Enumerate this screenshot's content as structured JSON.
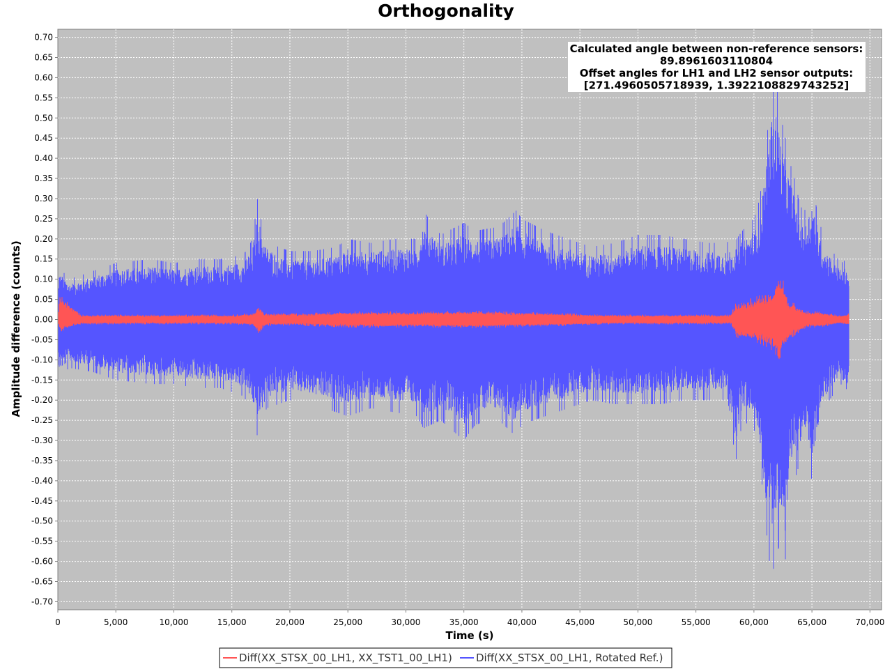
{
  "chart_data": {
    "type": "line",
    "title": "Orthogonality",
    "xlabel": "Time (s)",
    "ylabel": "Amplitude difference (counts)",
    "xlim": [
      0,
      71000
    ],
    "ylim": [
      -0.72,
      0.72
    ],
    "x_ticks": [
      0,
      5000,
      10000,
      15000,
      20000,
      25000,
      30000,
      35000,
      40000,
      45000,
      50000,
      55000,
      60000,
      65000,
      70000
    ],
    "x_tick_labels": [
      "0",
      "5,000",
      "10,000",
      "15,000",
      "20,000",
      "25,000",
      "30,000",
      "35,000",
      "40,000",
      "45,000",
      "50,000",
      "55,000",
      "60,000",
      "65,000",
      "70,000"
    ],
    "y_ticks": [
      0.7,
      0.65,
      0.6,
      0.55,
      0.5,
      0.45,
      0.4,
      0.35,
      0.3,
      0.25,
      0.2,
      0.15,
      0.1,
      0.05,
      0.0,
      -0.05,
      -0.1,
      -0.15,
      -0.2,
      -0.25,
      -0.3,
      -0.35,
      -0.4,
      -0.45,
      -0.5,
      -0.55,
      -0.6,
      -0.65,
      -0.7
    ],
    "y_tick_labels": [
      "0.70",
      "0.65",
      "0.60",
      "0.55",
      "0.50",
      "0.45",
      "0.40",
      "0.35",
      "0.30",
      "0.25",
      "0.20",
      "0.15",
      "0.10",
      "0.05",
      "0.00",
      "-0.05",
      "-0.10",
      "-0.15",
      "-0.20",
      "-0.25",
      "-0.30",
      "-0.35",
      "-0.40",
      "-0.45",
      "-0.50",
      "-0.55",
      "-0.60",
      "-0.65",
      "-0.70"
    ],
    "grid": true,
    "plot_background": "#c0c0c0",
    "annotation_lines": [
      "Calculated angle between non-reference sensors:",
      "89.8961603110804",
      "Offset angles for LH1 and LH2 sensor outputs:",
      "[271.4960505718939, 1.3922108829743252]"
    ],
    "legend_position": "bottom-center",
    "series": [
      {
        "name": "Diff(XX_STSX_00_LH1, Rotated Ref.)",
        "color": "#5555ff",
        "envelope_time_s": [
          0,
          100,
          1000,
          3000,
          5000,
          8000,
          10000,
          12000,
          14000,
          16000,
          16800,
          17200,
          17500,
          18000,
          19000,
          20000,
          22000,
          24000,
          25000,
          27000,
          29000,
          31000,
          31500,
          33000,
          35000,
          36000,
          38000,
          39500,
          40000,
          42000,
          44000,
          46000,
          48000,
          50000,
          52000,
          54000,
          56000,
          57500,
          58500,
          59000,
          60000,
          60500,
          61000,
          61500,
          61800,
          62000,
          62300,
          62600,
          63000,
          63500,
          64000,
          64500,
          65000,
          66000,
          67000,
          67500,
          68000,
          68200
        ],
        "envelope_upper": [
          0.05,
          0.13,
          0.1,
          0.12,
          0.14,
          0.15,
          0.14,
          0.15,
          0.15,
          0.16,
          0.2,
          0.3,
          0.25,
          0.2,
          0.18,
          0.17,
          0.17,
          0.18,
          0.2,
          0.19,
          0.2,
          0.2,
          0.27,
          0.21,
          0.24,
          0.22,
          0.23,
          0.27,
          0.25,
          0.22,
          0.2,
          0.18,
          0.19,
          0.21,
          0.21,
          0.2,
          0.19,
          0.19,
          0.2,
          0.22,
          0.25,
          0.3,
          0.42,
          0.56,
          0.6,
          0.58,
          0.5,
          0.47,
          0.4,
          0.35,
          0.28,
          0.27,
          0.33,
          0.2,
          0.16,
          0.14,
          0.15,
          0.1
        ],
        "envelope_lower": [
          -0.05,
          -0.14,
          -0.12,
          -0.13,
          -0.15,
          -0.16,
          -0.16,
          -0.17,
          -0.17,
          -0.19,
          -0.23,
          -0.29,
          -0.26,
          -0.22,
          -0.21,
          -0.2,
          -0.21,
          -0.23,
          -0.24,
          -0.22,
          -0.23,
          -0.24,
          -0.27,
          -0.25,
          -0.3,
          -0.26,
          -0.25,
          -0.29,
          -0.26,
          -0.24,
          -0.22,
          -0.2,
          -0.21,
          -0.21,
          -0.21,
          -0.2,
          -0.2,
          -0.2,
          -0.35,
          -0.25,
          -0.27,
          -0.35,
          -0.5,
          -0.65,
          -0.6,
          -0.58,
          -0.55,
          -0.65,
          -0.45,
          -0.4,
          -0.35,
          -0.33,
          -0.4,
          -0.22,
          -0.18,
          -0.16,
          -0.2,
          -0.14
        ]
      },
      {
        "name": "Diff(XX_STSX_00_LH1, XX_TST1_00_LH1)",
        "color": "#ff5555",
        "envelope_time_s": [
          0,
          200,
          2000,
          5000,
          10000,
          15000,
          16800,
          17300,
          17800,
          19000,
          21000,
          23000,
          26000,
          29000,
          32000,
          35000,
          38000,
          41000,
          44000,
          47000,
          50000,
          53000,
          56000,
          58000,
          58500,
          59500,
          60500,
          61200,
          61800,
          62200,
          62500,
          63000,
          63500,
          64500,
          65500,
          66500,
          67500,
          68200
        ],
        "envelope_upper": [
          0.008,
          0.06,
          0.012,
          0.012,
          0.012,
          0.012,
          0.015,
          0.035,
          0.015,
          0.015,
          0.015,
          0.018,
          0.02,
          0.02,
          0.02,
          0.022,
          0.02,
          0.018,
          0.015,
          0.012,
          0.012,
          0.012,
          0.012,
          0.012,
          0.045,
          0.05,
          0.06,
          0.06,
          0.08,
          0.12,
          0.1,
          0.045,
          0.04,
          0.02,
          0.02,
          0.015,
          0.01,
          0.015
        ],
        "envelope_lower": [
          -0.008,
          -0.03,
          -0.012,
          -0.012,
          -0.012,
          -0.012,
          -0.015,
          -0.04,
          -0.015,
          -0.015,
          -0.015,
          -0.018,
          -0.02,
          -0.02,
          -0.02,
          -0.022,
          -0.02,
          -0.018,
          -0.015,
          -0.012,
          -0.012,
          -0.012,
          -0.012,
          -0.012,
          -0.045,
          -0.05,
          -0.06,
          -0.07,
          -0.08,
          -0.12,
          -0.08,
          -0.05,
          -0.04,
          -0.02,
          -0.02,
          -0.015,
          -0.01,
          -0.015
        ]
      }
    ],
    "legend_order": [
      1,
      0
    ]
  }
}
